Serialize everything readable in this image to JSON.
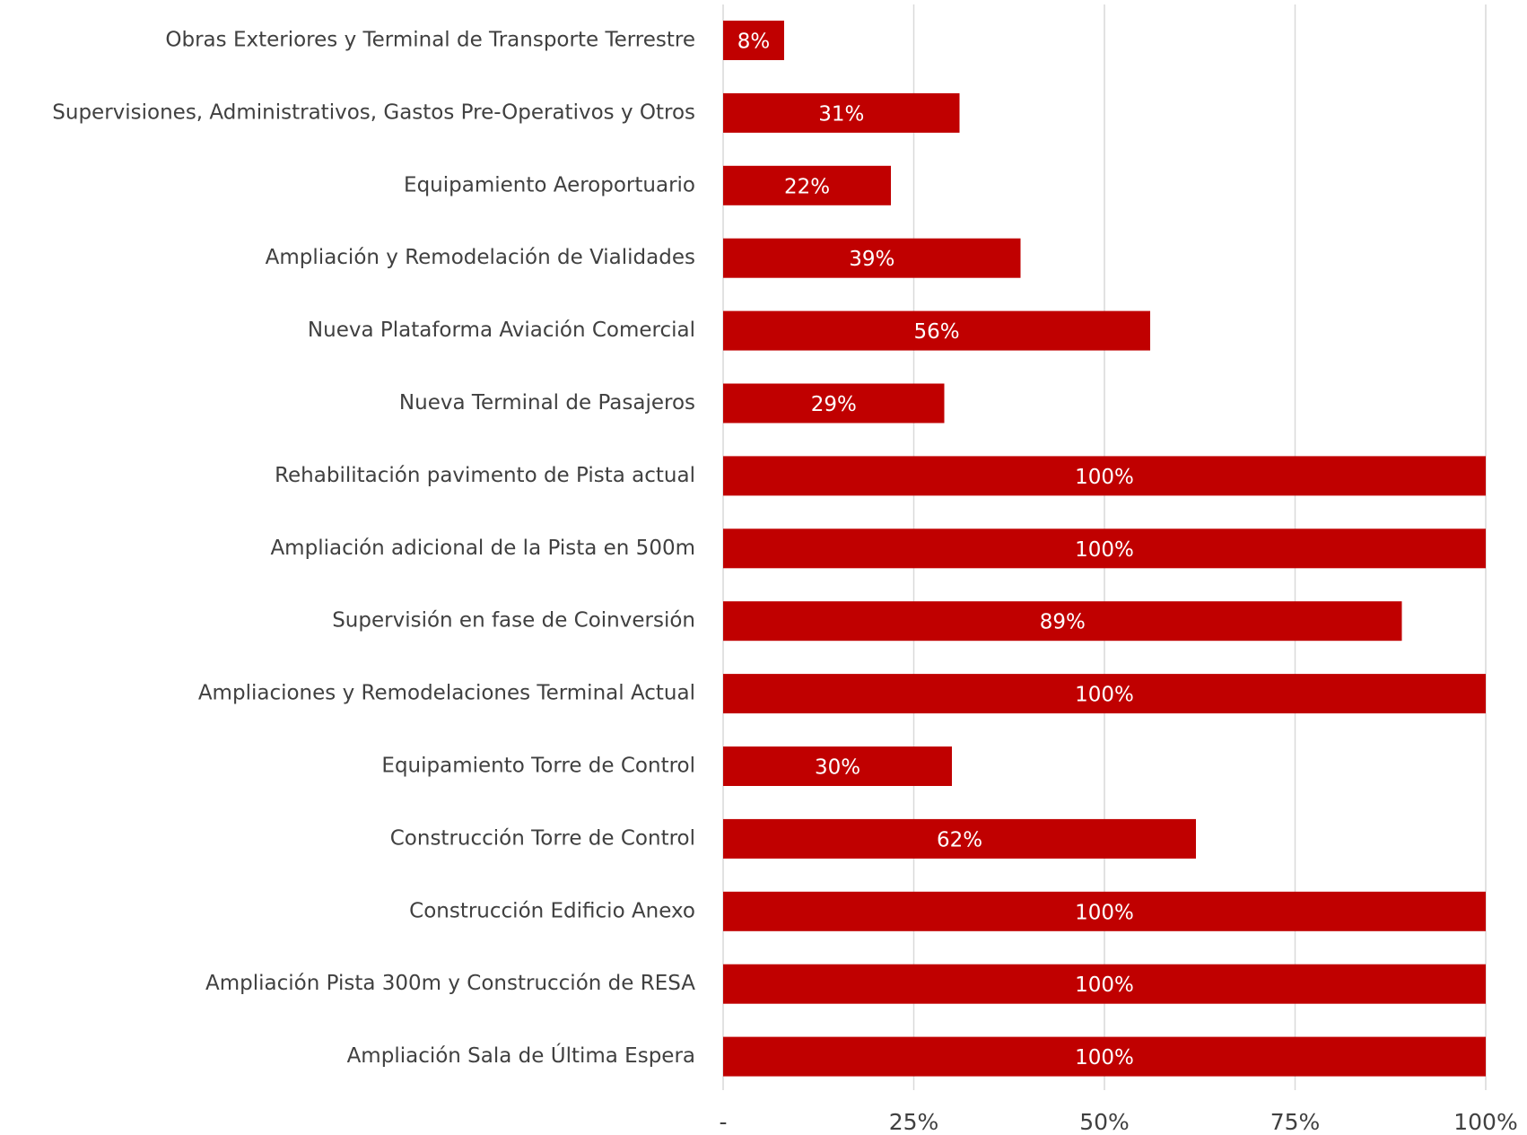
{
  "chart_data": {
    "type": "bar",
    "orientation": "horizontal",
    "categories": [
      "Obras Exteriores y Terminal de Transporte Terrestre",
      "Supervisiones, Administrativos, Gastos Pre-Operativos y Otros",
      "Equipamiento Aeroportuario",
      "Ampliación y Remodelación de Vialidades",
      "Nueva Plataforma Aviación Comercial",
      "Nueva Terminal de Pasajeros",
      "Rehabilitación pavimento de Pista actual",
      "Ampliación adicional de la Pista en 500m",
      "Supervisión en fase de Coinversión",
      "Ampliaciones y Remodelaciones Terminal Actual",
      "Equipamiento Torre de Control",
      "Construcción Torre de Control",
      "Construcción Edificio Anexo",
      "Ampliación Pista 300m y Construcción de RESA",
      "Ampliación Sala de Última Espera"
    ],
    "values": [
      8,
      31,
      22,
      39,
      56,
      29,
      100,
      100,
      89,
      100,
      30,
      62,
      100,
      100,
      100
    ],
    "value_labels": [
      "8%",
      "31%",
      "22%",
      "39%",
      "56%",
      "29%",
      "100%",
      "100%",
      "89%",
      "100%",
      "30%",
      "62%",
      "100%",
      "100%",
      "100%"
    ],
    "color": "#c00000",
    "xlim": [
      0,
      100
    ],
    "xticks": [
      {
        "value": 0,
        "label": "-"
      },
      {
        "value": 25,
        "label": "25%"
      },
      {
        "value": 50,
        "label": "50%"
      },
      {
        "value": 75,
        "label": "75%"
      },
      {
        "value": 100,
        "label": "100%"
      }
    ],
    "grid": true
  }
}
